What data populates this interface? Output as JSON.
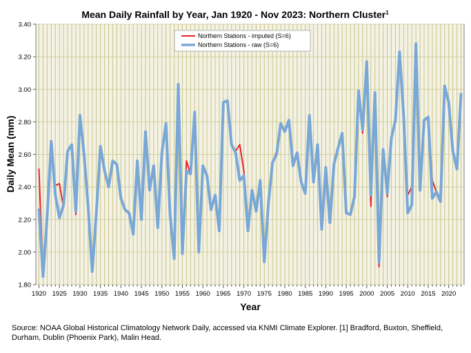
{
  "chart_data": {
    "type": "line",
    "title": "Mean Daily Rainfall by Year, Jan 1920 - Nov 2023: Northern Cluster",
    "title_footnote": "1",
    "xlabel": "Year",
    "ylabel": "Daily Mean (mm)",
    "xlim": [
      1920,
      2023
    ],
    "ylim": [
      1.8,
      3.4
    ],
    "ytick_step": 0.2,
    "xtick_step": 5,
    "xticks": [
      1920,
      1925,
      1930,
      1935,
      1940,
      1945,
      1950,
      1955,
      1960,
      1965,
      1970,
      1975,
      1980,
      1985,
      1990,
      1995,
      2000,
      2005,
      2010,
      2015,
      2020
    ],
    "yticks": [
      "1.80",
      "2.00",
      "2.20",
      "2.40",
      "2.60",
      "2.80",
      "3.00",
      "3.20",
      "3.40"
    ],
    "grid": "vertical every year, horizontal every 0.2",
    "legend_position": "top-center",
    "x": [
      1920,
      1921,
      1922,
      1923,
      1924,
      1925,
      1926,
      1927,
      1928,
      1929,
      1930,
      1931,
      1932,
      1933,
      1934,
      1935,
      1936,
      1937,
      1938,
      1939,
      1940,
      1941,
      1942,
      1943,
      1944,
      1945,
      1946,
      1947,
      1948,
      1949,
      1950,
      1951,
      1952,
      1953,
      1954,
      1955,
      1956,
      1957,
      1958,
      1959,
      1960,
      1961,
      1962,
      1963,
      1964,
      1965,
      1966,
      1967,
      1968,
      1969,
      1970,
      1971,
      1972,
      1973,
      1974,
      1975,
      1976,
      1977,
      1978,
      1979,
      1980,
      1981,
      1982,
      1983,
      1984,
      1985,
      1986,
      1987,
      1988,
      1989,
      1990,
      1991,
      1992,
      1993,
      1994,
      1995,
      1996,
      1997,
      1998,
      1999,
      2000,
      2001,
      2002,
      2003,
      2004,
      2005,
      2006,
      2007,
      2008,
      2009,
      2010,
      2011,
      2012,
      2013,
      2014,
      2015,
      2016,
      2017,
      2018,
      2019,
      2020,
      2021,
      2022,
      2023
    ],
    "series": [
      {
        "name": "Northern Stations - imputed (S=6)",
        "color": "#e8202a",
        "values": [
          2.51,
          1.85,
          2.22,
          2.64,
          2.41,
          2.42,
          2.27,
          2.62,
          2.66,
          2.23,
          2.82,
          2.6,
          2.28,
          1.88,
          2.24,
          2.65,
          2.5,
          2.4,
          2.56,
          2.54,
          2.33,
          2.26,
          2.24,
          2.11,
          2.56,
          2.2,
          2.74,
          2.38,
          2.53,
          2.15,
          2.61,
          2.79,
          2.23,
          1.96,
          3.03,
          1.99,
          2.56,
          2.48,
          2.86,
          2.0,
          2.53,
          2.47,
          2.26,
          2.35,
          2.13,
          2.92,
          2.93,
          2.66,
          2.62,
          2.66,
          2.5,
          2.13,
          2.38,
          2.25,
          2.44,
          1.94,
          2.3,
          2.55,
          2.62,
          2.79,
          2.74,
          2.81,
          2.53,
          2.61,
          2.43,
          2.36,
          2.84,
          2.43,
          2.66,
          2.14,
          2.52,
          2.18,
          2.54,
          2.64,
          2.73,
          2.24,
          2.23,
          2.34,
          2.99,
          2.73,
          3.17,
          2.28,
          2.98,
          1.91,
          2.63,
          2.34,
          2.7,
          2.81,
          3.23,
          2.84,
          2.35,
          2.4,
          3.28,
          2.38,
          2.81,
          2.83,
          2.44,
          2.37,
          2.31,
          3.02,
          2.92,
          2.62,
          2.51,
          2.97
        ]
      },
      {
        "name": "Northern Stations - raw (S=6)",
        "color": "#79a7d6",
        "values": [
          2.26,
          1.85,
          2.22,
          2.68,
          2.35,
          2.21,
          2.29,
          2.62,
          2.66,
          2.25,
          2.84,
          2.6,
          2.28,
          1.88,
          2.24,
          2.65,
          2.5,
          2.4,
          2.56,
          2.54,
          2.33,
          2.26,
          2.24,
          2.11,
          2.56,
          2.2,
          2.74,
          2.38,
          2.53,
          2.15,
          2.61,
          2.79,
          2.23,
          1.96,
          3.03,
          1.99,
          2.5,
          2.48,
          2.86,
          2.0,
          2.53,
          2.47,
          2.26,
          2.35,
          2.13,
          2.92,
          2.93,
          2.66,
          2.61,
          2.44,
          2.47,
          2.13,
          2.38,
          2.25,
          2.44,
          1.94,
          2.3,
          2.55,
          2.6,
          2.79,
          2.74,
          2.81,
          2.53,
          2.61,
          2.43,
          2.36,
          2.84,
          2.43,
          2.66,
          2.14,
          2.52,
          2.18,
          2.54,
          2.64,
          2.73,
          2.24,
          2.23,
          2.34,
          2.99,
          2.75,
          3.17,
          2.35,
          2.98,
          1.94,
          2.63,
          2.36,
          2.7,
          2.81,
          3.23,
          2.84,
          2.24,
          2.29,
          3.28,
          2.38,
          2.81,
          2.83,
          2.33,
          2.37,
          2.31,
          3.02,
          2.92,
          2.62,
          2.51,
          2.97
        ]
      }
    ]
  },
  "source_text": "Source: NOAA Global Historical Climatology Network Daily, accessed via KNMI Climate Explorer. [1] Bradford, Buxton, Sheffield, Durham, Dublin (Phoenix Park), Malin Head."
}
